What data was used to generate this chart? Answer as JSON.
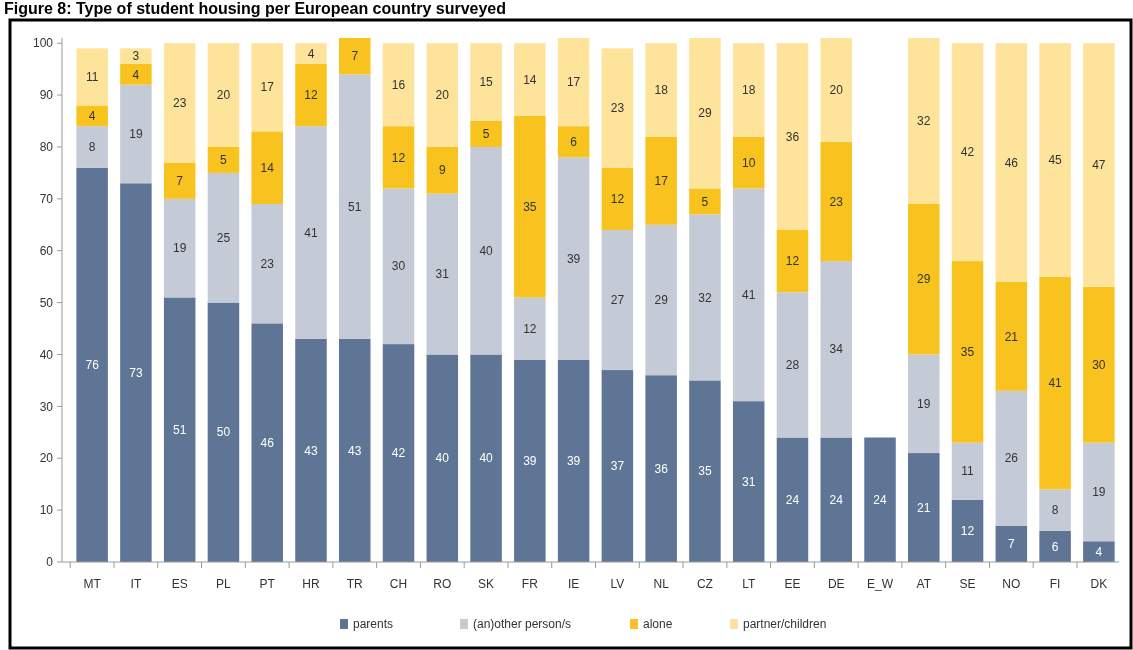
{
  "chart_data": {
    "type": "bar",
    "title": "Figure 8: Type of student housing per European country surveyed",
    "categories": [
      "MT",
      "IT",
      "ES",
      "PL",
      "PT",
      "HR",
      "TR",
      "CH",
      "RO",
      "SK",
      "FR",
      "IE",
      "LV",
      "NL",
      "CZ",
      "LT",
      "EE",
      "DE",
      "E_W",
      "AT",
      "SE",
      "NO",
      "FI",
      "DK"
    ],
    "stacked": true,
    "data_labels": true,
    "legend": "bottom",
    "grid": false,
    "ylim": [
      0,
      101
    ],
    "yticks": [
      0,
      10,
      20,
      30,
      40,
      50,
      60,
      70,
      80,
      90,
      100
    ],
    "series": [
      {
        "name": "parents",
        "color": "#5f7595",
        "values": [
          76,
          73,
          51,
          50,
          46,
          43,
          43,
          42,
          40,
          40,
          39,
          39,
          37,
          36,
          35,
          31,
          24,
          24,
          24,
          21,
          12,
          7,
          6,
          4
        ]
      },
      {
        "name": "(an)other person/s",
        "color": "#c5cbd6",
        "values": [
          8,
          19,
          19,
          25,
          23,
          41,
          51,
          30,
          31,
          40,
          12,
          39,
          27,
          29,
          32,
          41,
          28,
          34,
          null,
          19,
          11,
          26,
          8,
          19
        ]
      },
      {
        "name": "alone",
        "color": "#f8c31f",
        "values": [
          4,
          4,
          7,
          5,
          14,
          12,
          7,
          12,
          9,
          5,
          35,
          6,
          12,
          17,
          5,
          10,
          12,
          23,
          null,
          29,
          35,
          21,
          41,
          30
        ]
      },
      {
        "name": "partner/children",
        "color": "#fde49a",
        "values": [
          11,
          3,
          23,
          20,
          17,
          4,
          null,
          16,
          20,
          15,
          14,
          17,
          23,
          18,
          29,
          18,
          36,
          20,
          null,
          32,
          42,
          46,
          45,
          47
        ]
      }
    ]
  }
}
